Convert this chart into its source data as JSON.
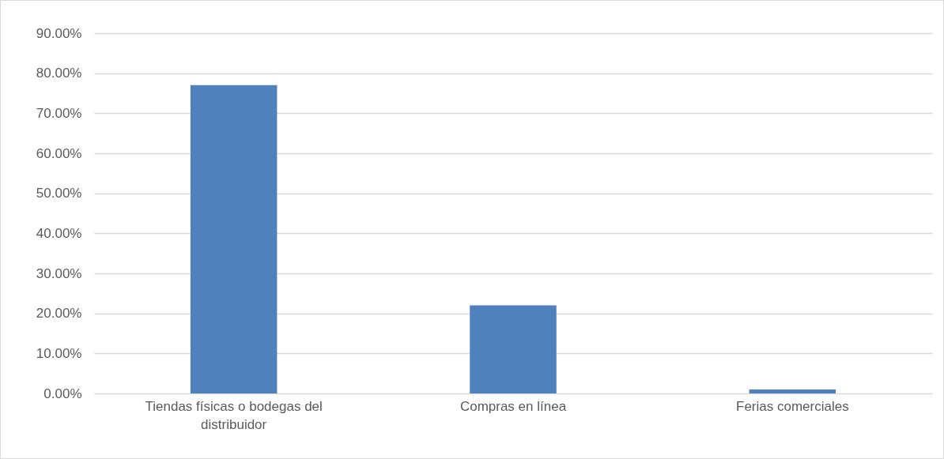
{
  "chart_data": {
    "type": "bar",
    "categories": [
      "Tiendas físicas o bodegas del distribuidor",
      "Compras en línea",
      "Ferias comerciales"
    ],
    "values": [
      77,
      22,
      1
    ],
    "color": "#4f81bd",
    "ylim": [
      0,
      90
    ],
    "yticks": [
      {
        "value": 0,
        "label": "0.00%"
      },
      {
        "value": 10,
        "label": "10.00%"
      },
      {
        "value": 20,
        "label": "20.00%"
      },
      {
        "value": 30,
        "label": "30.00%"
      },
      {
        "value": 40,
        "label": "40.00%"
      },
      {
        "value": 50,
        "label": "50.00%"
      },
      {
        "value": 60,
        "label": "60.00%"
      },
      {
        "value": 70,
        "label": "70.00%"
      },
      {
        "value": 80,
        "label": "80.00%"
      },
      {
        "value": 90,
        "label": "90.00%"
      }
    ],
    "grid": "y"
  }
}
